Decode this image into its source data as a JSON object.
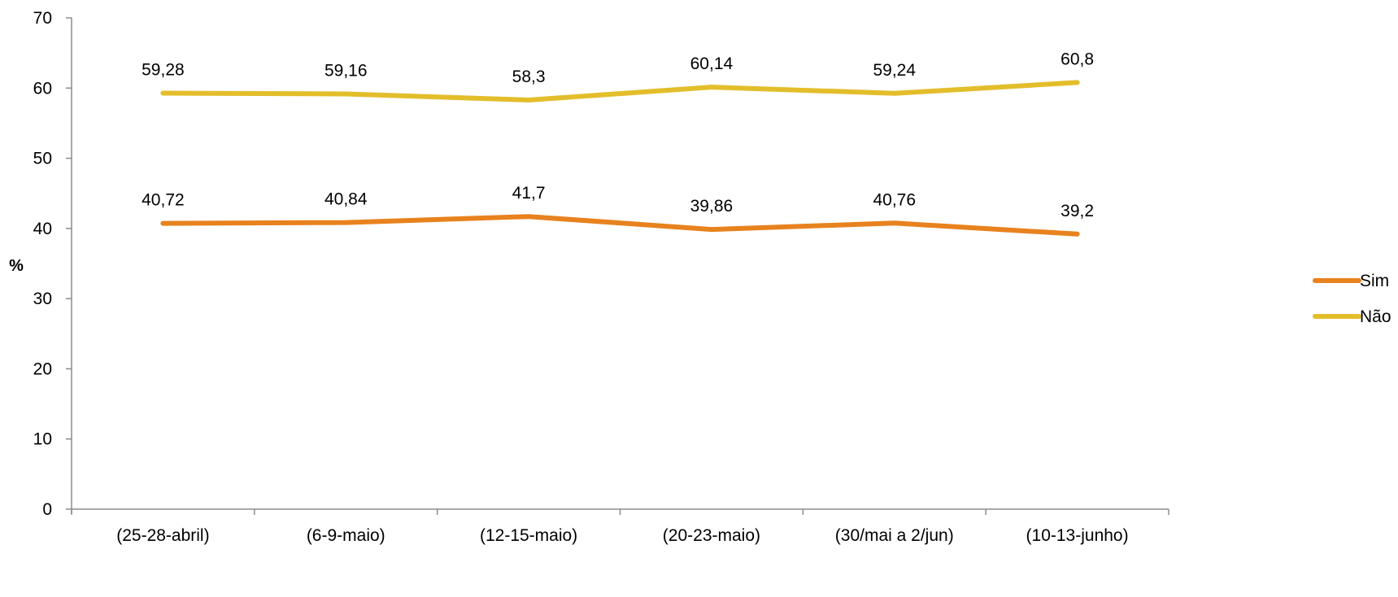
{
  "chart_data": {
    "type": "line",
    "title": "",
    "xlabel": "",
    "ylabel": "%",
    "ylim": [
      0,
      70
    ],
    "yticks": [
      0,
      10,
      20,
      30,
      40,
      50,
      60,
      70
    ],
    "grid": false,
    "legend_position": "right",
    "categories": [
      "(25-28-abril)",
      "(6-9-maio)",
      "(12-15-maio)",
      "(20-23-maio)",
      "(30/mai a 2/jun)",
      "(10-13-junho)"
    ],
    "series": [
      {
        "name": "Sim",
        "color": "#E8821E",
        "values": [
          40.72,
          40.84,
          41.7,
          39.86,
          40.76,
          39.2
        ],
        "labels": [
          "40,72",
          "40,84",
          "41,7",
          "39,86",
          "40,76",
          "39,2"
        ]
      },
      {
        "name": "Não",
        "color": "#E3BE2B",
        "values": [
          59.28,
          59.16,
          58.3,
          60.14,
          59.24,
          60.8
        ],
        "labels": [
          "59,28",
          "59,16",
          "58,3",
          "60,14",
          "59,24",
          "60,8"
        ]
      }
    ]
  }
}
